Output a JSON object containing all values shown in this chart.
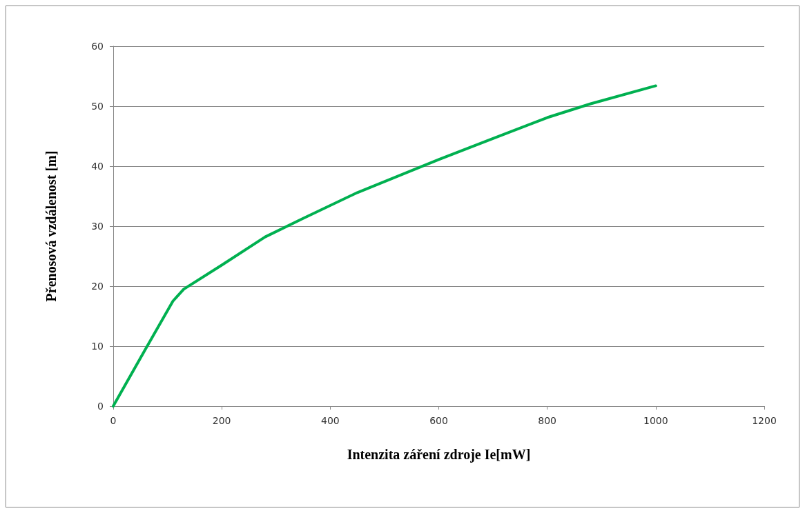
{
  "chart_data": {
    "type": "line",
    "xlabel": "Intenzita záření zdroje Ie[mW]",
    "ylabel": "Přenosová vzdálenost [m]",
    "series": [
      {
        "color": "#00b050",
        "x": [
          0,
          50,
          110,
          130,
          200,
          280,
          350,
          450,
          600,
          700,
          800,
          880,
          1000
        ],
        "values": [
          0,
          8,
          17.5,
          19.5,
          23.5,
          28.2,
          31.3,
          35.6,
          41.1,
          44.6,
          48.1,
          50.4,
          53.4
        ]
      }
    ],
    "xlim": [
      0,
      1200
    ],
    "xticks": [
      0,
      200,
      400,
      600,
      800,
      1000,
      1200
    ],
    "ylim": [
      0,
      60
    ],
    "yticks": [
      0,
      10,
      20,
      30,
      40,
      50,
      60
    ],
    "grid": "y",
    "marker": "none",
    "line_style": "solid"
  }
}
